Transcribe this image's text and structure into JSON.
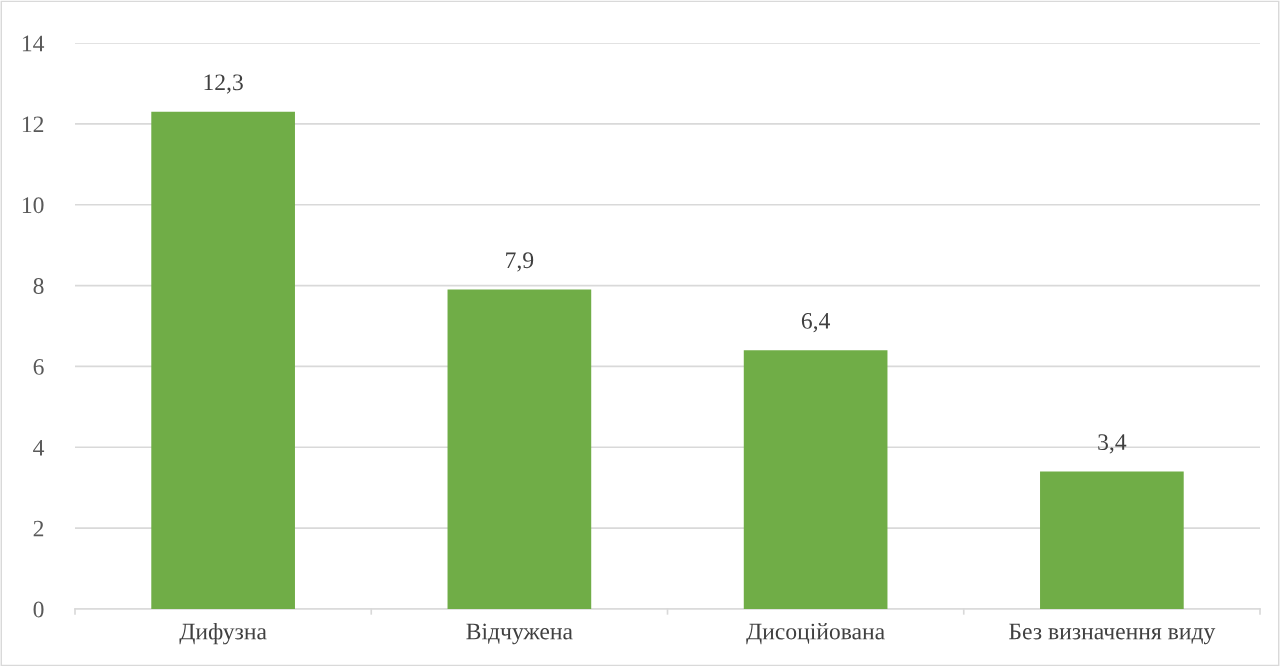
{
  "chart_data": {
    "type": "bar",
    "categories": [
      "Дифузна",
      "Відчужена",
      "Дисоційована",
      "Без визначення виду"
    ],
    "values": [
      12.3,
      7.9,
      6.4,
      3.4
    ],
    "color": "#70ad47",
    "value_labels": [
      "12,3",
      "7,9",
      "6,4",
      "3,4"
    ],
    "ylim": [
      0,
      14
    ],
    "yticks": [
      0,
      2,
      4,
      6,
      8,
      10,
      12,
      14
    ],
    "grid": "y",
    "legend": false
  }
}
